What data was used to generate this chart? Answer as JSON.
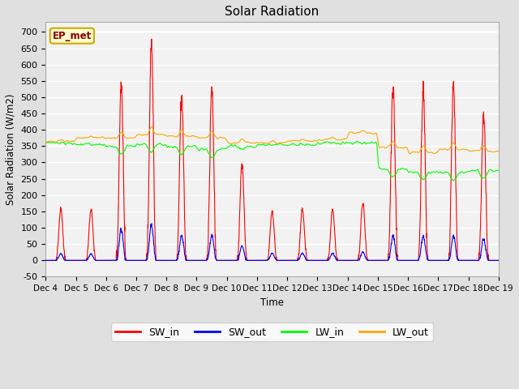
{
  "title": "Solar Radiation",
  "ylabel": "Solar Radiation (W/m2)",
  "xlabel": "Time",
  "ylim": [
    -50,
    730
  ],
  "yticks": [
    -50,
    0,
    50,
    100,
    150,
    200,
    250,
    300,
    350,
    400,
    450,
    500,
    550,
    600,
    650,
    700
  ],
  "fig_bg": "#e0e0e0",
  "plot_bg": "#f2f2f2",
  "grid_color": "white",
  "annotation_label": "EP_met",
  "annotation_bg": "#ffffcc",
  "annotation_border": "#ccaa00",
  "legend_entries": [
    "SW_in",
    "SW_out",
    "LW_in",
    "LW_out"
  ],
  "line_colors": [
    "red",
    "blue",
    "lime",
    "orange"
  ],
  "n_days": 15,
  "start_day": 4,
  "pts_per_day": 144,
  "day_peaks_SW_in": [
    155,
    155,
    540,
    660,
    505,
    530,
    295,
    150,
    155,
    155,
    175,
    530,
    530,
    535,
    450
  ],
  "day_peaks_SW_out": [
    20,
    20,
    95,
    110,
    75,
    75,
    45,
    22,
    22,
    22,
    25,
    75,
    75,
    75,
    65
  ],
  "lw_in_base": [
    360,
    355,
    350,
    355,
    350,
    340,
    350,
    355,
    355,
    360,
    360,
    280,
    270,
    270,
    275
  ],
  "lw_out_base": [
    365,
    375,
    375,
    385,
    380,
    375,
    360,
    360,
    365,
    370,
    390,
    345,
    330,
    340,
    335
  ]
}
